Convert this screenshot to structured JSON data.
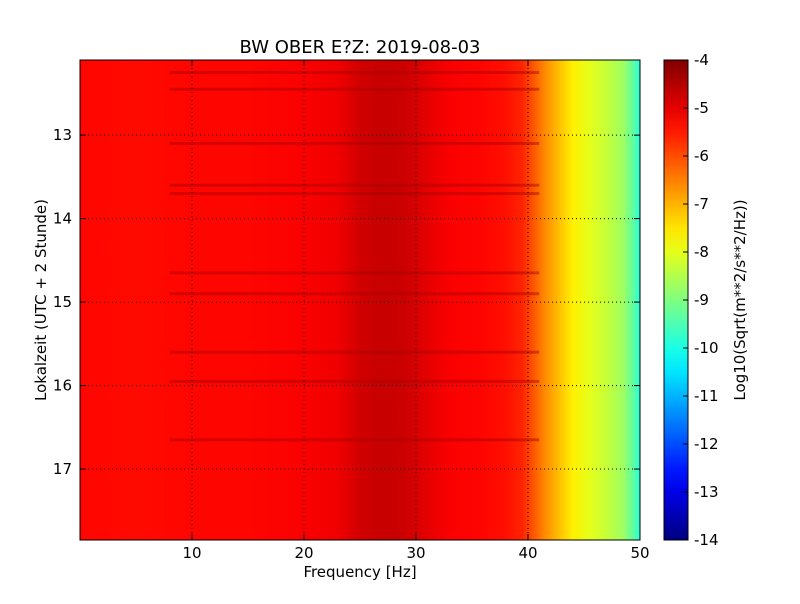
{
  "chart_data": {
    "type": "heatmap",
    "title": "BW OBER E?Z: 2019-08-03",
    "xlabel": "Frequency [Hz]",
    "ylabel": "Lokalzeit (UTC + 2 Stunde)",
    "xlim": [
      0,
      50
    ],
    "ylim": [
      12.1,
      17.85
    ],
    "x_ticks": [
      "10",
      "20",
      "30",
      "40",
      "50"
    ],
    "y_ticks": [
      "13",
      "14",
      "15",
      "16",
      "17"
    ],
    "grid": true,
    "colormap": "jet",
    "colorbar": {
      "label": "Log10(Sqrt(m**2/s**2/Hz))",
      "range": [
        -14,
        -4
      ],
      "ticks": [
        "-4",
        "-5",
        "-6",
        "-7",
        "-8",
        "-9",
        "-10",
        "-11",
        "-12",
        "-13",
        "-14"
      ]
    },
    "spectrum_profile": {
      "frequency_hz": [
        0,
        5,
        10,
        15,
        20,
        23,
        25,
        27,
        29,
        31,
        33,
        36,
        38,
        39.5,
        40.5,
        41.5,
        42.5,
        44,
        45.5,
        47,
        48.5,
        49.5,
        50
      ],
      "log10_amplitude": [
        -5.3,
        -5.35,
        -5.3,
        -5.3,
        -5.2,
        -5.1,
        -4.8,
        -4.7,
        -4.75,
        -5.0,
        -5.2,
        -5.3,
        -5.4,
        -5.6,
        -6.1,
        -6.6,
        -7.0,
        -7.6,
        -8.0,
        -8.3,
        -8.7,
        -9.4,
        -9.9
      ]
    },
    "high_noise_times": [
      12.25,
      12.45,
      13.1,
      13.6,
      13.7,
      14.65,
      14.9,
      15.6,
      15.95,
      16.65
    ]
  }
}
